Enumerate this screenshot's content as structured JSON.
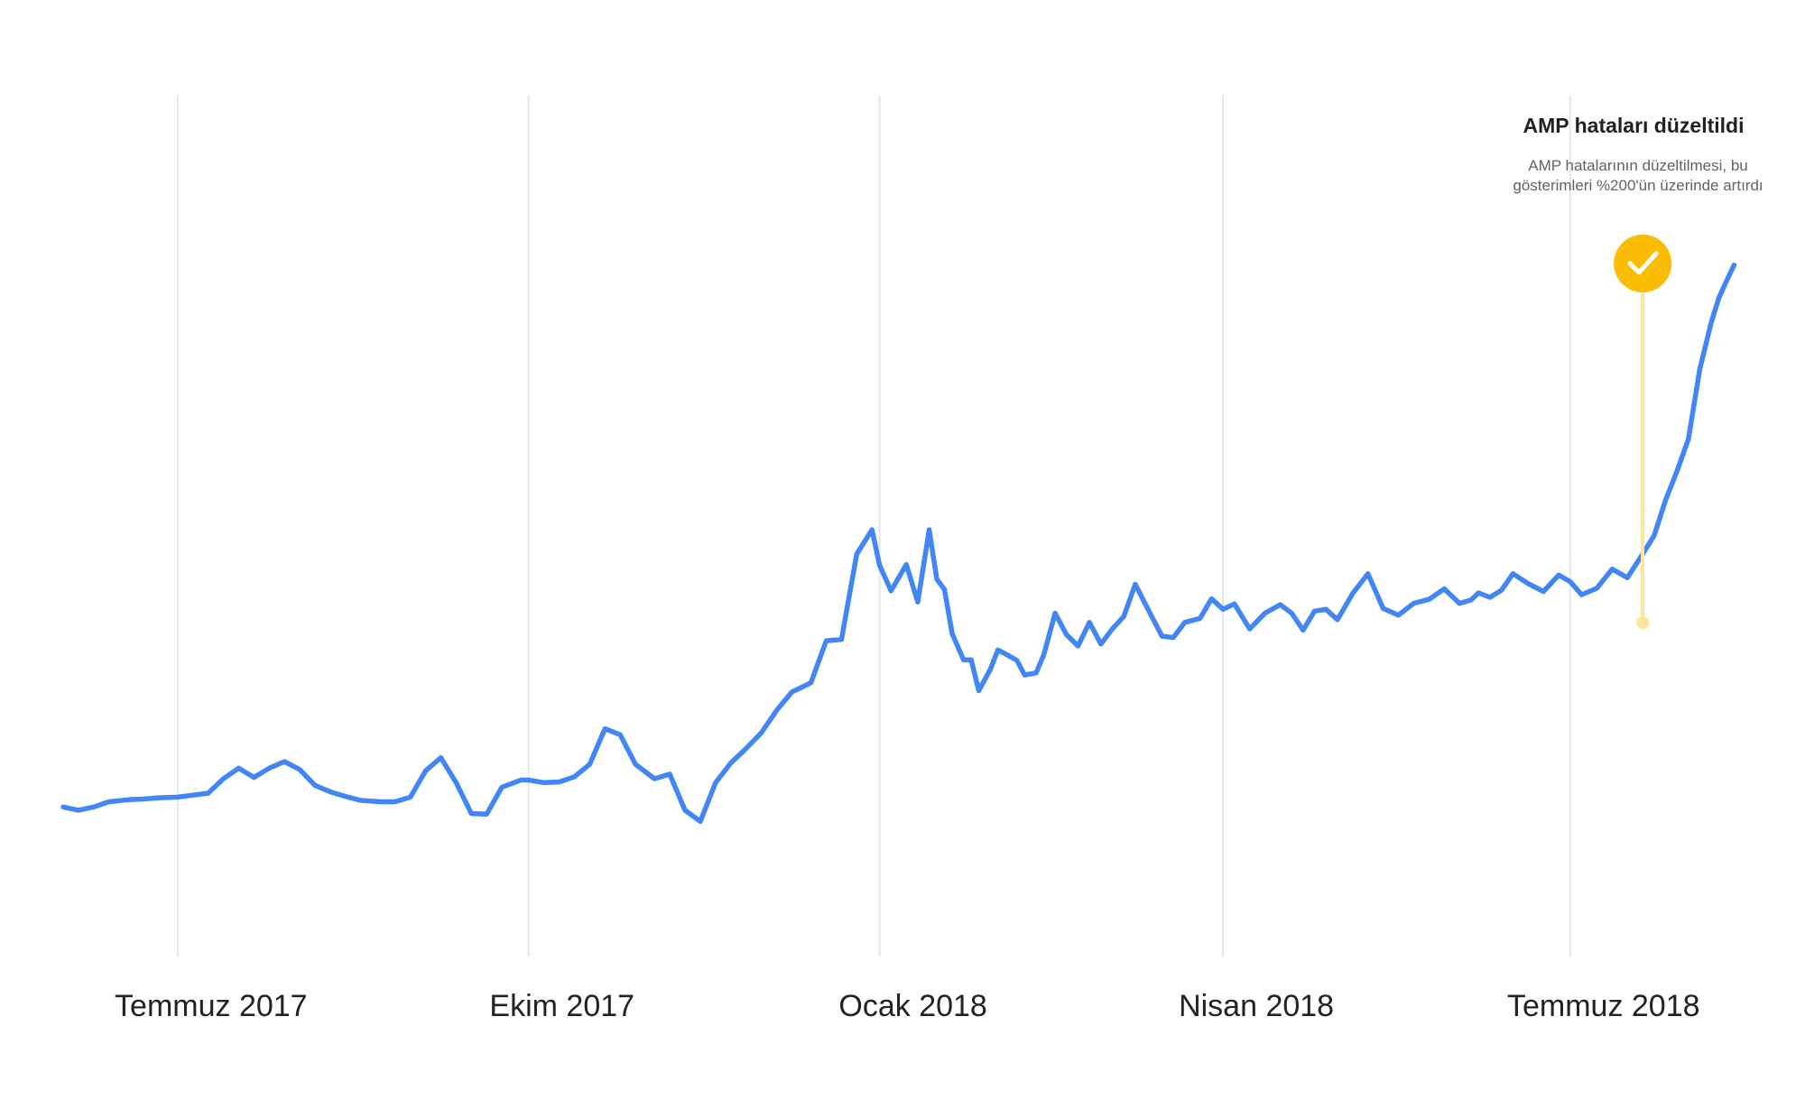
{
  "colors": {
    "series": "#4285f4",
    "marker": "#fbbc04",
    "marker_stem": "#fde69a",
    "gridline": "#e6e6e6"
  },
  "annotation": {
    "title": "AMP hataları düzeltildi",
    "text": "AMP hatalarının düzeltilmesi, bu gösterimleri %200'ün üzerinde artırdı",
    "date": "2018-07-20",
    "icon": "check-icon"
  },
  "chart_data": {
    "type": "line",
    "title": "",
    "xlabel": "",
    "ylabel": "",
    "grid": true,
    "x_ticks": [
      {
        "date": "2017-07-01",
        "label": "Temmuz 2017"
      },
      {
        "date": "2017-10-01",
        "label": "Ekim 2017"
      },
      {
        "date": "2018-01-01",
        "label": "Ocak 2018"
      },
      {
        "date": "2018-04-01",
        "label": "Nisan 2018"
      },
      {
        "date": "2018-07-01",
        "label": "Temmuz 2018"
      }
    ],
    "xlim": [
      "2017-06-01",
      "2018-08-15"
    ],
    "ylim": [
      0,
      100
    ],
    "series": [
      {
        "x": [
          "2017-06-01",
          "2017-06-05",
          "2017-06-09",
          "2017-06-13",
          "2017-06-18",
          "2017-06-22",
          "2017-06-26",
          "2017-07-01",
          "2017-07-05",
          "2017-07-09",
          "2017-07-13",
          "2017-07-17",
          "2017-07-21",
          "2017-07-25",
          "2017-07-29",
          "2017-08-02",
          "2017-08-06",
          "2017-08-10",
          "2017-08-14",
          "2017-08-18",
          "2017-08-23",
          "2017-08-27",
          "2017-08-31",
          "2017-09-04",
          "2017-09-08",
          "2017-09-12",
          "2017-09-16",
          "2017-09-20",
          "2017-09-24",
          "2017-09-29",
          "2017-10-01",
          "2017-10-05",
          "2017-10-09",
          "2017-10-13",
          "2017-10-17",
          "2017-10-21",
          "2017-10-25",
          "2017-10-29",
          "2017-11-03",
          "2017-11-07",
          "2017-11-11",
          "2017-11-15",
          "2017-11-19",
          "2017-11-23",
          "2017-11-27",
          "2017-12-01",
          "2017-12-05",
          "2017-12-09",
          "2017-12-14",
          "2017-12-18",
          "2017-12-22",
          "2017-12-26",
          "2017-12-30",
          "2018-01-01",
          "2018-01-04",
          "2018-01-08",
          "2018-01-11",
          "2018-01-14",
          "2018-01-16",
          "2018-01-18",
          "2018-01-20",
          "2018-01-23",
          "2018-01-25",
          "2018-01-27",
          "2018-01-30",
          "2018-02-01",
          "2018-02-03",
          "2018-02-06",
          "2018-02-08",
          "2018-02-11",
          "2018-02-13",
          "2018-02-16",
          "2018-02-19",
          "2018-02-22",
          "2018-02-25",
          "2018-02-28",
          "2018-03-03",
          "2018-03-06",
          "2018-03-09",
          "2018-03-12",
          "2018-03-16",
          "2018-03-19",
          "2018-03-22",
          "2018-03-26",
          "2018-03-29",
          "2018-04-01",
          "2018-04-04",
          "2018-04-08",
          "2018-04-12",
          "2018-04-16",
          "2018-04-19",
          "2018-04-22",
          "2018-04-25",
          "2018-04-28",
          "2018-05-01",
          "2018-05-05",
          "2018-05-09",
          "2018-05-13",
          "2018-05-17",
          "2018-05-21",
          "2018-05-25",
          "2018-05-29",
          "2018-06-02",
          "2018-06-05",
          "2018-06-07",
          "2018-06-10",
          "2018-06-13",
          "2018-06-16",
          "2018-06-20",
          "2018-06-24",
          "2018-06-28",
          "2018-07-01",
          "2018-07-04",
          "2018-07-08",
          "2018-07-12",
          "2018-07-16",
          "2018-07-20",
          "2018-07-23",
          "2018-07-26",
          "2018-07-29",
          "2018-08-01",
          "2018-08-04",
          "2018-08-07",
          "2018-08-09",
          "2018-08-11",
          "2018-08-13"
        ],
        "y": [
          11.5,
          11.0,
          11.5,
          12.3,
          12.6,
          12.7,
          12.9,
          13.0,
          13.3,
          13.6,
          15.8,
          17.4,
          16.0,
          17.4,
          18.4,
          17.2,
          14.8,
          13.8,
          13.1,
          12.5,
          12.3,
          12.3,
          13.0,
          17.0,
          19.0,
          15.2,
          10.5,
          10.4,
          14.5,
          15.6,
          15.6,
          15.2,
          15.3,
          16.1,
          18.0,
          23.4,
          22.5,
          18.0,
          15.8,
          16.5,
          11.0,
          9.3,
          15.2,
          18.2,
          20.4,
          22.8,
          26.2,
          29.0,
          30.4,
          36.8,
          37.0,
          50.0,
          53.7,
          48.3,
          44.4,
          48.4,
          42.7,
          53.7,
          46.2,
          44.6,
          37.9,
          33.9,
          33.9,
          29.2,
          32.4,
          35.4,
          34.8,
          33.8,
          31.6,
          31.9,
          34.6,
          41.0,
          37.7,
          36.0,
          39.6,
          36.3,
          38.6,
          40.5,
          45.4,
          42.0,
          37.5,
          37.3,
          39.6,
          40.2,
          43.2,
          41.6,
          42.4,
          38.6,
          41.0,
          42.3,
          41.0,
          38.4,
          41.3,
          41.6,
          40.0,
          44.0,
          47.0,
          41.7,
          40.7,
          42.5,
          43.1,
          44.7,
          42.5,
          43.0,
          44.1,
          43.4,
          44.5,
          47.0,
          45.5,
          44.3,
          46.8,
          45.8,
          43.8,
          44.8,
          47.7,
          46.4,
          50.0,
          52.8,
          58.2,
          62.6,
          67.5,
          78.2,
          85.3,
          89.0,
          91.6,
          94.0
        ]
      }
    ]
  }
}
